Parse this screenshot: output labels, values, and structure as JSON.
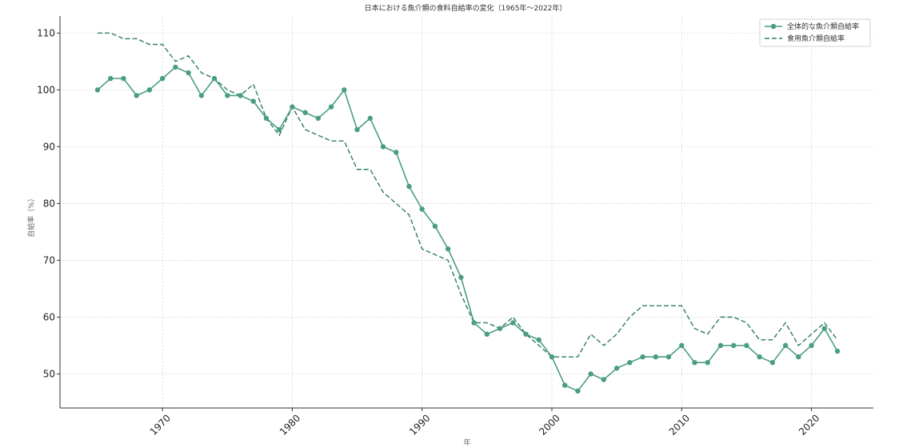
{
  "chart_data": {
    "type": "line",
    "title": "日本における魚介類の食料自給率の変化（1965年〜2022年）",
    "xlabel": "年",
    "ylabel": "自給率（%）",
    "xlim": [
      1960,
      2025
    ],
    "ylim": [
      44,
      113
    ],
    "x_ticks": [
      1970,
      1980,
      1990,
      2000,
      2010,
      2020
    ],
    "y_ticks": [
      50,
      60,
      70,
      80,
      90,
      100,
      110
    ],
    "grid": true,
    "legend_position": "top-right",
    "colors": {
      "series": "#4a9e7f",
      "grid": "#cfcfcf",
      "axis": "#333333"
    },
    "x": [
      1965,
      1966,
      1967,
      1968,
      1969,
      1970,
      1971,
      1972,
      1973,
      1974,
      1975,
      1976,
      1977,
      1978,
      1979,
      1980,
      1981,
      1982,
      1983,
      1984,
      1985,
      1986,
      1987,
      1988,
      1989,
      1990,
      1991,
      1992,
      1993,
      1994,
      1995,
      1996,
      1997,
      1998,
      1999,
      2000,
      2001,
      2002,
      2003,
      2004,
      2005,
      2006,
      2007,
      2008,
      2009,
      2010,
      2011,
      2012,
      2013,
      2014,
      2015,
      2016,
      2017,
      2018,
      2019,
      2020,
      2021,
      2022
    ],
    "series": [
      {
        "name": "全体的な魚介類自給率",
        "style": "solid-marker",
        "values": [
          100,
          102,
          102,
          99,
          100,
          102,
          104,
          103,
          99,
          102,
          99,
          99,
          98,
          95,
          93,
          97,
          96,
          95,
          97,
          100,
          93,
          95,
          90,
          89,
          83,
          79,
          76,
          72,
          67,
          59,
          57,
          58,
          59,
          57,
          56,
          53,
          48,
          47,
          50,
          49,
          51,
          52,
          53,
          53,
          53,
          55,
          52,
          52,
          55,
          55,
          55,
          53,
          52,
          55,
          53,
          55,
          58,
          54
        ]
      },
      {
        "name": "食用魚介類自給率",
        "style": "dashed",
        "values": [
          110,
          110,
          109,
          109,
          108,
          108,
          105,
          106,
          103,
          102,
          100,
          99,
          101,
          95,
          92,
          97,
          93,
          92,
          91,
          91,
          86,
          86,
          82,
          80,
          78,
          72,
          71,
          70,
          64,
          59,
          59,
          58,
          60,
          57,
          55,
          53,
          53,
          53,
          57,
          55,
          57,
          60,
          62,
          62,
          62,
          62,
          58,
          57,
          60,
          60,
          59,
          56,
          56,
          59,
          55,
          57,
          59,
          56
        ]
      }
    ]
  }
}
